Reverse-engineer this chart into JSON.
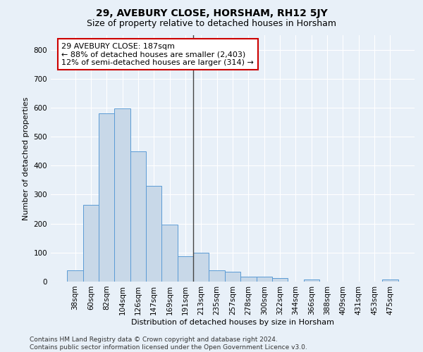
{
  "title": "29, AVEBURY CLOSE, HORSHAM, RH12 5JY",
  "subtitle": "Size of property relative to detached houses in Horsham",
  "xlabel": "Distribution of detached houses by size in Horsham",
  "ylabel": "Number of detached properties",
  "footer_line1": "Contains HM Land Registry data © Crown copyright and database right 2024.",
  "footer_line2": "Contains public sector information licensed under the Open Government Licence v3.0.",
  "categories": [
    "38sqm",
    "60sqm",
    "82sqm",
    "104sqm",
    "126sqm",
    "147sqm",
    "169sqm",
    "191sqm",
    "213sqm",
    "235sqm",
    "257sqm",
    "278sqm",
    "300sqm",
    "322sqm",
    "344sqm",
    "366sqm",
    "388sqm",
    "409sqm",
    "431sqm",
    "453sqm",
    "475sqm"
  ],
  "values": [
    40,
    265,
    580,
    597,
    450,
    330,
    197,
    87,
    100,
    40,
    35,
    17,
    17,
    11,
    0,
    7,
    0,
    0,
    0,
    0,
    7
  ],
  "bar_color": "#c8d8e8",
  "bar_edge_color": "#5b9bd5",
  "vline_index": 7.5,
  "vline_color": "#444444",
  "annotation_text": "29 AVEBURY CLOSE: 187sqm\n← 88% of detached houses are smaller (2,403)\n12% of semi-detached houses are larger (314) →",
  "annotation_box_color": "#ffffff",
  "annotation_box_edge_color": "#cc0000",
  "ylim": [
    0,
    850
  ],
  "yticks": [
    0,
    100,
    200,
    300,
    400,
    500,
    600,
    700,
    800
  ],
  "background_color": "#e8f0f8",
  "grid_color": "#ffffff",
  "title_fontsize": 10,
  "subtitle_fontsize": 9,
  "axis_label_fontsize": 8,
  "tick_fontsize": 7.5,
  "footer_fontsize": 6.5,
  "annotation_fontsize": 8
}
